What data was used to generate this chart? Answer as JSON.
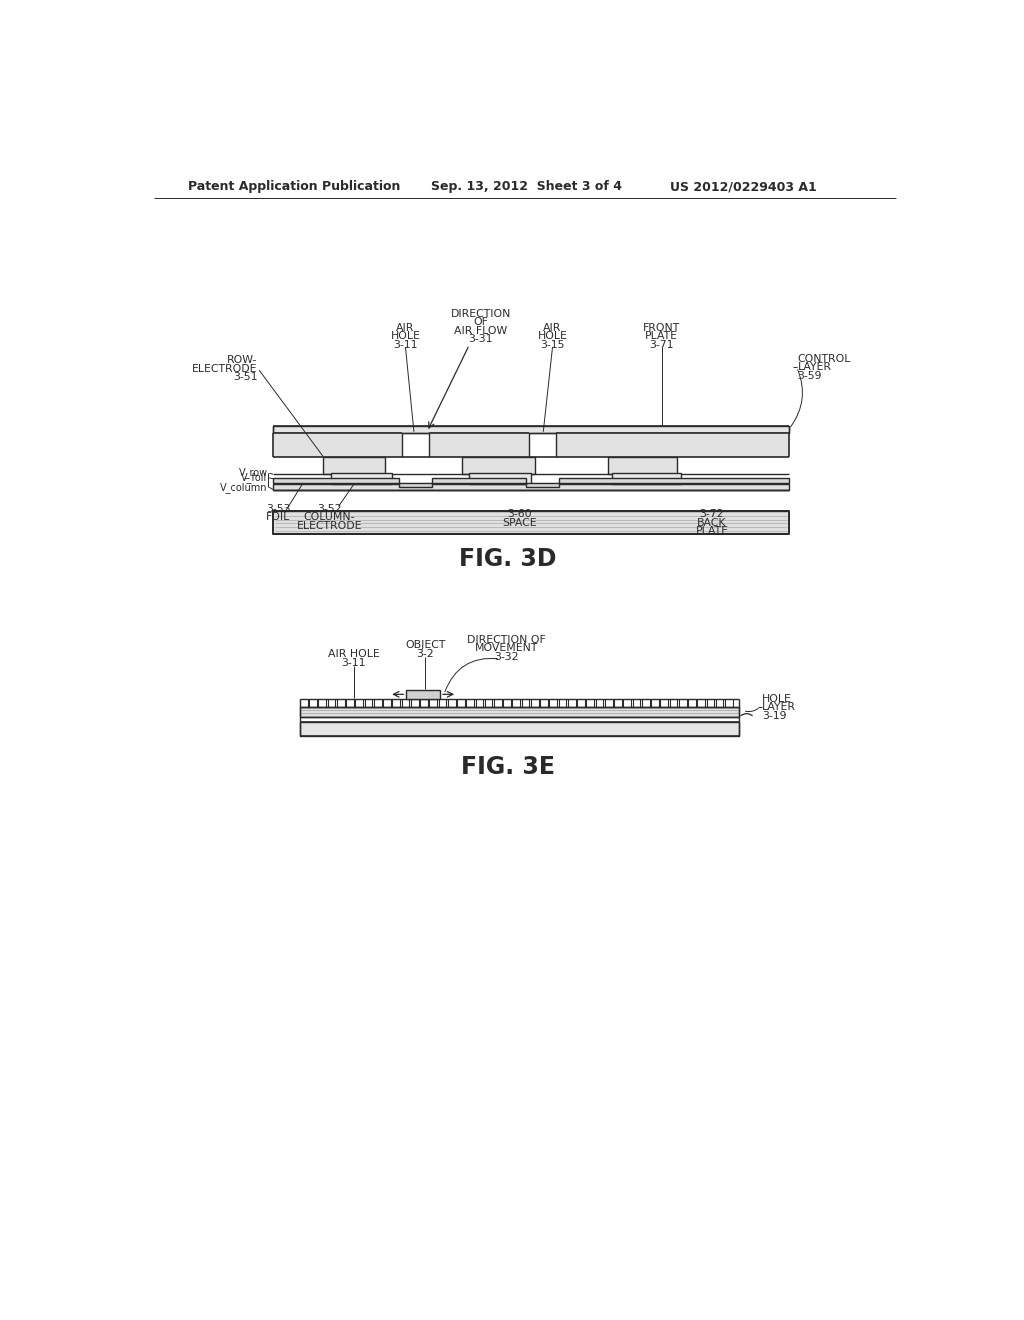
{
  "bg_color": "#ffffff",
  "header_left": "Patent Application Publication",
  "header_center": "Sep. 13, 2012  Sheet 3 of 4",
  "header_right": "US 2012/0229403 A1",
  "fig3d_label": "FIG. 3D",
  "fig3e_label": "FIG. 3E",
  "line_color": "#2a2a2a",
  "text_color": "#2a2a2a"
}
